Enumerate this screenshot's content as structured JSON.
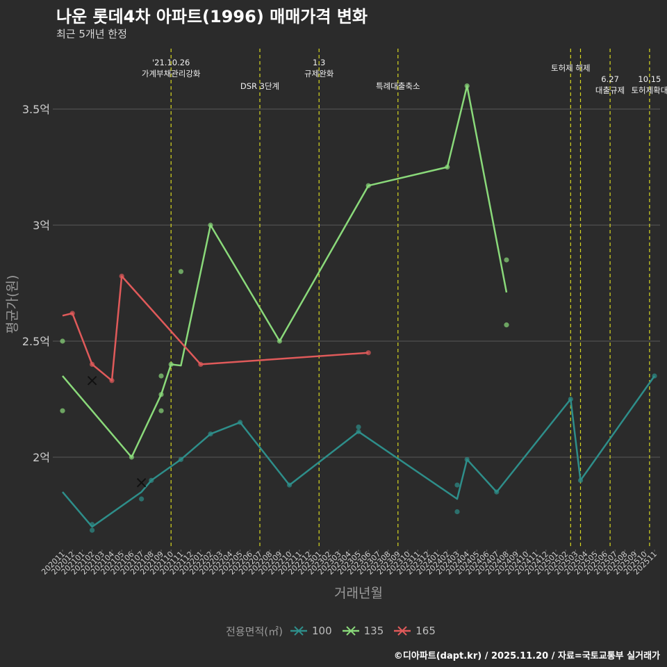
{
  "title": "나운 롯데4차 아파트(1996) 매매가격 변화",
  "subtitle": "최근 5개년 한정",
  "caption": "©디아파트(dapt.kr) / 2025.11.20 / 자료=국토교통부 실거래가",
  "colors": {
    "background": "#2b2b2b",
    "grid": "#5a5a5a",
    "event_line": "#d8d820",
    "s100": "#2e8e8a",
    "s135": "#8ad97a",
    "s165": "#e05a5a"
  },
  "chart_data": {
    "type": "line",
    "xlabel": "거래년월",
    "ylabel": "평균가(원)",
    "ylim": [
      1.6,
      3.7
    ],
    "yticks": [
      {
        "value": 2.0,
        "label": "2억"
      },
      {
        "value": 2.5,
        "label": "2.5억"
      },
      {
        "value": 3.0,
        "label": "3억"
      },
      {
        "value": 3.5,
        "label": "3.5억"
      }
    ],
    "categories": [
      "202011",
      "202012",
      "202101",
      "202102",
      "202103",
      "202104",
      "202105",
      "202106",
      "202107",
      "202108",
      "202109",
      "202110",
      "202111",
      "202112",
      "202201",
      "202202",
      "202203",
      "202204",
      "202205",
      "202206",
      "202207",
      "202208",
      "202209",
      "202210",
      "202211",
      "202212",
      "202301",
      "202302",
      "202303",
      "202304",
      "202305",
      "202306",
      "202307",
      "202308",
      "202309",
      "202310",
      "202311",
      "202312",
      "202401",
      "202402",
      "202403",
      "202404",
      "202405",
      "202406",
      "202407",
      "202408",
      "202409",
      "202410",
      "202411",
      "202412",
      "202501",
      "202502",
      "202503",
      "202504",
      "202505",
      "202506",
      "202507",
      "202508",
      "202509",
      "202510",
      "202511"
    ],
    "events": [
      {
        "x": 11,
        "label": "'21.10.26\n가계부채관리강화",
        "level": 0
      },
      {
        "x": 20,
        "label": "DSR 3단계",
        "level": 1
      },
      {
        "x": 26,
        "label": "1.3\n규제완화",
        "level": 0
      },
      {
        "x": 34,
        "label": "특례대출축소",
        "level": 1
      },
      {
        "x": 51.5,
        "label": "토허제 해제",
        "level": 0
      },
      {
        "x": 52.5,
        "label": "",
        "level": 0
      },
      {
        "x": 55.5,
        "label": "6.27\n대출규제",
        "level": 2
      },
      {
        "x": 59.5,
        "label": "10.15\n토허제확대",
        "level": 2
      }
    ],
    "legend_title": "전용면적(㎡)",
    "series": [
      {
        "name": "100",
        "color_key": "s100",
        "line": [
          [
            0,
            1.85
          ],
          [
            3,
            1.7
          ],
          [
            8,
            1.85
          ],
          [
            9,
            1.9
          ],
          [
            12,
            1.99
          ],
          [
            15,
            2.1
          ],
          [
            18,
            2.15
          ],
          [
            23,
            1.88
          ],
          [
            30,
            2.11
          ],
          [
            40,
            1.82
          ],
          [
            41,
            1.99
          ],
          [
            44,
            1.85
          ],
          [
            51.5,
            2.25
          ],
          [
            52.5,
            1.9
          ],
          [
            60,
            2.35
          ]
        ],
        "points": [
          [
            3,
            1.71
          ],
          [
            3,
            1.685
          ],
          [
            8,
            1.82
          ],
          [
            9,
            1.9
          ],
          [
            12,
            1.99
          ],
          [
            15,
            2.1
          ],
          [
            18,
            2.15
          ],
          [
            23,
            1.88
          ],
          [
            30,
            2.13
          ],
          [
            30,
            2.11
          ],
          [
            40,
            1.88
          ],
          [
            40,
            1.765
          ],
          [
            41,
            1.99
          ],
          [
            44,
            1.85
          ],
          [
            51.5,
            2.25
          ],
          [
            52.5,
            1.9
          ],
          [
            60,
            2.35
          ]
        ],
        "cross": [
          [
            8,
            1.89
          ]
        ]
      },
      {
        "name": "135",
        "color_key": "s135",
        "line": [
          [
            0,
            2.35
          ],
          [
            7,
            2.0
          ],
          [
            10,
            2.27
          ],
          [
            11,
            2.4
          ],
          [
            12,
            2.395
          ],
          [
            15,
            3.0
          ],
          [
            22,
            2.5
          ],
          [
            31,
            3.17
          ],
          [
            39,
            3.25
          ],
          [
            41,
            3.6
          ],
          [
            45,
            2.71
          ]
        ],
        "points": [
          [
            0,
            2.5
          ],
          [
            0,
            2.2
          ],
          [
            7,
            2.0
          ],
          [
            10,
            2.35
          ],
          [
            10,
            2.2
          ],
          [
            10,
            2.27
          ],
          [
            11,
            2.4
          ],
          [
            12,
            2.8
          ],
          [
            15,
            3.0
          ],
          [
            22,
            2.5
          ],
          [
            31,
            3.17
          ],
          [
            39,
            3.25
          ],
          [
            41,
            3.6
          ],
          [
            45,
            2.85
          ],
          [
            45,
            2.57
          ]
        ],
        "cross": []
      },
      {
        "name": "165",
        "color_key": "s165",
        "line": [
          [
            0,
            2.61
          ],
          [
            1,
            2.62
          ],
          [
            3,
            2.4
          ],
          [
            5,
            2.33
          ],
          [
            6,
            2.78
          ],
          [
            14,
            2.4
          ],
          [
            31,
            2.45
          ]
        ],
        "points": [
          [
            1,
            2.62
          ],
          [
            3,
            2.4
          ],
          [
            5,
            2.33
          ],
          [
            6,
            2.78
          ],
          [
            14,
            2.4
          ],
          [
            31,
            2.45
          ]
        ],
        "cross": [
          [
            3,
            2.33
          ]
        ]
      }
    ]
  }
}
